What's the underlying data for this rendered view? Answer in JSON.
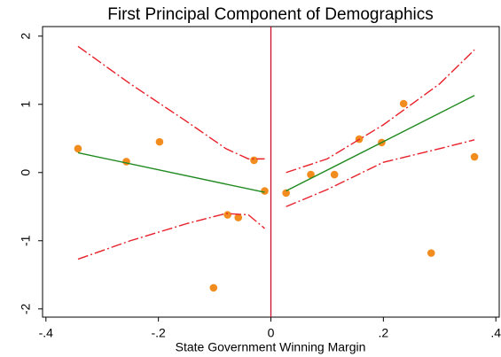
{
  "chart_data": {
    "type": "scatter",
    "title": "First Principal Component of Demographics",
    "x_label": "State Government Winning Margin",
    "xlim": [
      -0.406,
      0.406
    ],
    "ylim": [
      -2.12,
      2.14
    ],
    "xticks": [
      {
        "value": -0.4,
        "label": "-.4"
      },
      {
        "value": -0.2,
        "label": "-.2"
      },
      0,
      {
        "value": 0.2,
        "label": ".2"
      },
      {
        "value": 0.4,
        "label": ".4"
      }
    ],
    "yticks": [
      -2,
      -1,
      0,
      1,
      2
    ],
    "cutoff": 0,
    "cutoff_color": "#c8102e",
    "series": [
      {
        "mode": "markers",
        "color": "#f28c1e",
        "x": [
          -0.343,
          -0.257,
          -0.198,
          -0.03,
          -0.011,
          -0.077,
          -0.058,
          -0.102,
          0.027,
          0.071,
          0.113,
          0.157,
          0.197,
          0.236,
          0.285,
          0.362
        ],
        "values": [
          0.35,
          0.16,
          0.45,
          0.18,
          -0.27,
          -0.62,
          -0.66,
          -1.69,
          -0.3,
          -0.03,
          -0.03,
          0.49,
          0.44,
          1.01,
          -1.18,
          0.23
        ]
      },
      {
        "mode": "solid",
        "color": "#1f8a1f",
        "x": [
          -0.343,
          -0.011
        ],
        "values": [
          0.29,
          -0.29
        ]
      },
      {
        "mode": "solid",
        "color": "#1f8a1f",
        "x": [
          0.027,
          0.362
        ],
        "values": [
          -0.27,
          1.13
        ]
      },
      {
        "mode": "dashed",
        "color": "#e8202a",
        "x": [
          -0.343,
          -0.25,
          -0.15,
          -0.08,
          -0.04,
          -0.011
        ],
        "values": [
          1.85,
          1.3,
          0.75,
          0.35,
          0.2,
          0.2
        ]
      },
      {
        "mode": "dashed",
        "color": "#e8202a",
        "x": [
          -0.343,
          -0.25,
          -0.15,
          -0.08,
          -0.04,
          -0.011
        ],
        "values": [
          -1.27,
          -1.0,
          -0.75,
          -0.6,
          -0.62,
          -0.82
        ]
      },
      {
        "mode": "dashed",
        "color": "#e8202a",
        "x": [
          0.027,
          0.1,
          0.2,
          0.3,
          0.362
        ],
        "values": [
          0.0,
          0.2,
          0.7,
          1.3,
          1.8
        ]
      },
      {
        "mode": "dashed",
        "color": "#e8202a",
        "x": [
          0.027,
          0.1,
          0.2,
          0.3,
          0.362
        ],
        "values": [
          -0.5,
          -0.25,
          0.15,
          0.35,
          0.48
        ]
      }
    ]
  }
}
